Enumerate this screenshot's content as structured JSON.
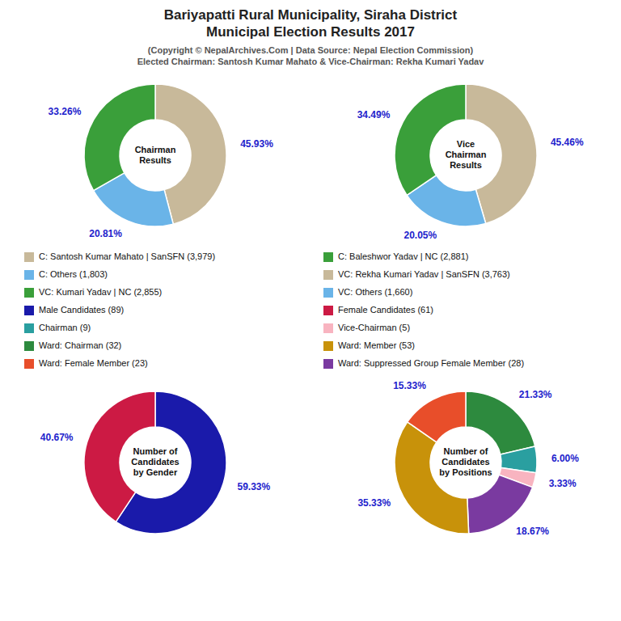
{
  "chart_data": [
    {
      "type": "pie",
      "title": "Bariyapatti Rural Municipality, Siraha District\nMunicipal Election Results 2017",
      "subtitle": "(Copyright © NepalArchives.Com | Data Source: Nepal Election Commission)\nElected Chairman: Santosh Kumar Mahato & Vice-Chairman: Rekha Kumari Yadav",
      "annotation": "Chairman\nResults",
      "values": [
        45.93,
        20.81,
        33.26
      ],
      "value_labels": [
        "45.93%",
        "20.81%",
        "33.26%"
      ],
      "colors": [
        "#c8b99a",
        "#6ab4e8",
        "#3a9f3a"
      ],
      "data_labels": true
    },
    {
      "type": "pie",
      "annotation": "Vice\nChairman\nResults",
      "values": [
        45.46,
        20.05,
        34.49
      ],
      "value_labels": [
        "45.46%",
        "20.05%",
        "34.49%"
      ],
      "colors": [
        "#c8b99a",
        "#6ab4e8",
        "#3a9f3a"
      ],
      "data_labels": true
    },
    {
      "type": "pie",
      "annotation": "Number of\nCandidates\nby Gender",
      "values": [
        59.33,
        40.67
      ],
      "value_labels": [
        "59.33%",
        "40.67%"
      ],
      "colors": [
        "#1a1aaa",
        "#cc1a44"
      ],
      "data_labels": true
    },
    {
      "type": "pie",
      "annotation": "Number of\nCandidates\nby Positions",
      "values": [
        21.33,
        6.0,
        3.33,
        18.67,
        35.33,
        15.33
      ],
      "value_labels": [
        "21.33%",
        "6.00%",
        "3.33%",
        "18.67%",
        "35.33%",
        "15.33%"
      ],
      "colors": [
        "#2d8a3e",
        "#2a9fa0",
        "#f8b4c0",
        "#7a3aa0",
        "#c8920a",
        "#e84e2a"
      ],
      "data_labels": true
    },
    {
      "type": "legend",
      "series": [
        {
          "name": "C: Santosh Kumar Mahato | SanSFN (3,979)",
          "color": "#c8b99a"
        },
        {
          "name": "C: Others (1,803)",
          "color": "#6ab4e8"
        },
        {
          "name": "VC: Kumari Yadav | NC (2,855)",
          "color": "#3a9f3a"
        },
        {
          "name": "Male Candidates (89)",
          "color": "#1a1aaa"
        },
        {
          "name": "Chairman (9)",
          "color": "#2a9fa0"
        },
        {
          "name": "Ward: Chairman (32)",
          "color": "#2d8a3e"
        },
        {
          "name": "Ward: Female Member (23)",
          "color": "#e84e2a"
        },
        {
          "name": "C: Baleshwor Yadav | NC (2,881)",
          "color": "#3a9f3a"
        },
        {
          "name": "VC: Rekha Kumari Yadav | SanSFN (3,763)",
          "color": "#c8b99a"
        },
        {
          "name": "VC: Others (1,660)",
          "color": "#6ab4e8"
        },
        {
          "name": "Female Candidates (61)",
          "color": "#cc1a44"
        },
        {
          "name": "Vice-Chairman (5)",
          "color": "#f8b4c0"
        },
        {
          "name": "Ward: Member (53)",
          "color": "#c8920a"
        },
        {
          "name": "Ward: Suppressed Group Female Member (28)",
          "color": "#7a3aa0"
        }
      ]
    }
  ]
}
